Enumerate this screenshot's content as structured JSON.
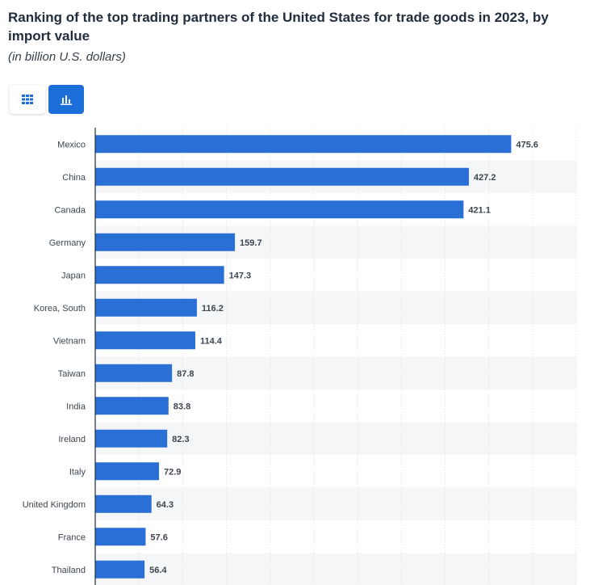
{
  "header": {
    "title": "Ranking of the top trading partners of the United States for trade goods in 2023, by import value",
    "subtitle": "(in billion U.S. dollars)"
  },
  "toolbar": {
    "table_icon": "grid-icon",
    "chart_icon": "bar-chart-icon",
    "active": "chart"
  },
  "colors": {
    "bar": "#2a6fd6",
    "band": "#f5f6f8",
    "grid": "#dcdfe4",
    "axis": "#1f2d3d",
    "toggle_active": "#1c6fd9"
  },
  "chart_data": {
    "type": "bar",
    "orientation": "horizontal",
    "title": "Ranking of the top trading partners of the United States for trade goods in 2023, by import value",
    "subtitle": "(in billion U.S. dollars)",
    "categories": [
      "Mexico",
      "China",
      "Canada",
      "Germany",
      "Japan",
      "Korea, South",
      "Vietnam",
      "Taiwan",
      "India",
      "Ireland",
      "Italy",
      "United Kingdom",
      "France",
      "Thailand"
    ],
    "values": [
      475.6,
      427.2,
      421.1,
      159.7,
      147.3,
      116.2,
      114.4,
      87.8,
      83.8,
      82.3,
      72.9,
      64.3,
      57.6,
      56.4
    ],
    "value_labels": [
      "475.6",
      "427.2",
      "421.1",
      "159.7",
      "147.3",
      "116.2",
      "114.4",
      "87.8",
      "83.8",
      "82.3",
      "72.9",
      "64.3",
      "57.6",
      "56.4"
    ],
    "xlim": [
      0,
      550
    ],
    "grid_step": 50,
    "xlabel": "",
    "ylabel": "",
    "grid": true
  }
}
